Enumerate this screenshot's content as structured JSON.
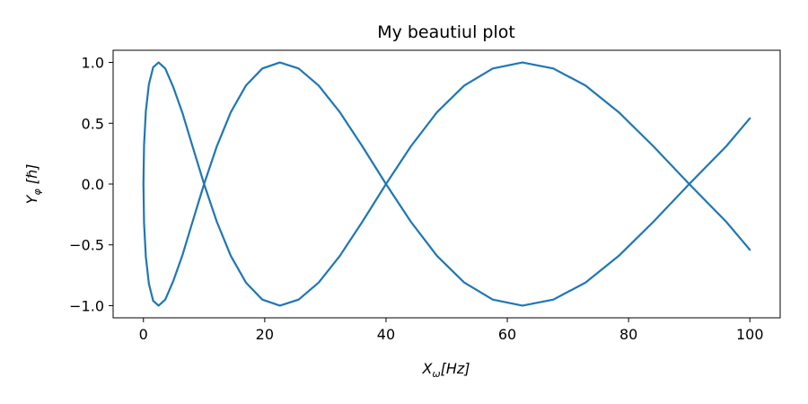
{
  "chart_data": {
    "type": "line",
    "title": "My beautiul plot",
    "xlabel": {
      "base": "X",
      "sub": "ω",
      "text": "[Hz]"
    },
    "ylabel": {
      "base": "Y",
      "sub": "φ",
      "text": "[ℏ]"
    },
    "xlim": [
      -5,
      105
    ],
    "ylim": [
      -1.1,
      1.1
    ],
    "xticks": [
      0,
      20,
      40,
      60,
      80,
      100
    ],
    "xtick_labels": [
      "0",
      "20",
      "40",
      "60",
      "80",
      "100"
    ],
    "yticks": [
      -1.0,
      -0.5,
      0.0,
      0.5,
      1.0
    ],
    "ytick_labels": [
      "−1.0",
      "−0.5",
      "0.0",
      "0.5",
      "1.0"
    ],
    "grid": false,
    "series": [
      {
        "color": "#1f77b4",
        "x": [
          0.0,
          0.1,
          0.4,
          0.9,
          1.6,
          2.5,
          3.6,
          4.9,
          6.4,
          8.1,
          10.0,
          12.1,
          14.4,
          16.9,
          19.6,
          22.5,
          25.6,
          28.9,
          32.4,
          36.1,
          40.0,
          44.1,
          48.4,
          52.9,
          57.6,
          62.5,
          67.6,
          72.9,
          78.4,
          84.1,
          90.0,
          96.1,
          100.0
        ],
        "y": [
          0.0,
          0.32,
          0.6,
          0.82,
          0.96,
          1.0,
          0.95,
          0.8,
          0.59,
          0.31,
          0.0,
          -0.31,
          -0.59,
          -0.81,
          -0.95,
          -1.0,
          -0.95,
          -0.81,
          -0.59,
          -0.31,
          0.0,
          0.31,
          0.59,
          0.81,
          0.95,
          1.0,
          0.95,
          0.81,
          0.59,
          0.31,
          0.0,
          -0.31,
          -0.54
        ]
      },
      {
        "color": "#1f77b4",
        "x": [
          0.0,
          0.1,
          0.4,
          0.9,
          1.6,
          2.5,
          3.6,
          4.9,
          6.4,
          8.1,
          10.0,
          12.1,
          14.4,
          16.9,
          19.6,
          22.5,
          25.6,
          28.9,
          32.4,
          36.1,
          40.0,
          44.1,
          48.4,
          52.9,
          57.6,
          62.5,
          67.6,
          72.9,
          78.4,
          84.1,
          90.0,
          96.1,
          100.0
        ],
        "y": [
          0.0,
          -0.32,
          -0.6,
          -0.82,
          -0.96,
          -1.0,
          -0.95,
          -0.8,
          -0.59,
          -0.31,
          0.0,
          0.31,
          0.59,
          0.81,
          0.95,
          1.0,
          0.95,
          0.81,
          0.59,
          0.31,
          0.0,
          -0.31,
          -0.59,
          -0.81,
          -0.95,
          -1.0,
          -0.95,
          -0.81,
          -0.59,
          -0.31,
          0.0,
          0.31,
          0.54
        ]
      }
    ]
  }
}
